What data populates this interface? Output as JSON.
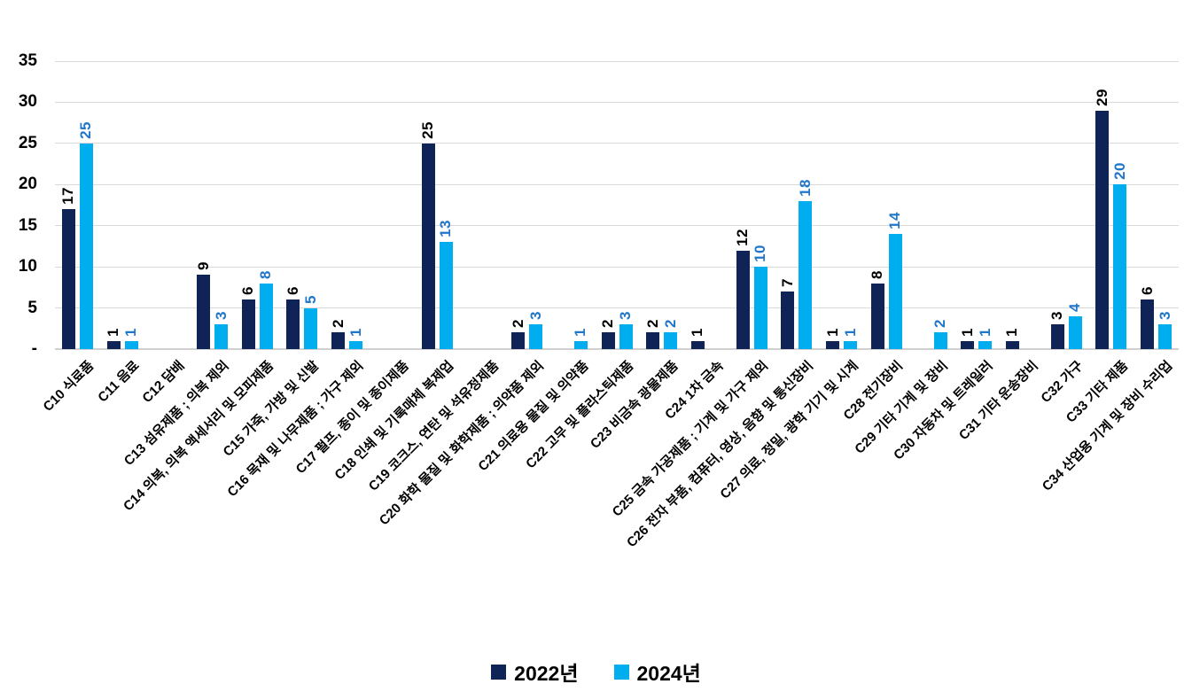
{
  "chart_data": {
    "type": "bar",
    "title": "",
    "xlabel": "",
    "ylabel": "",
    "ylim": [
      0,
      35
    ],
    "ytick_interval": 5,
    "yticks": [
      "-",
      "5",
      "10",
      "15",
      "20",
      "25",
      "30",
      "35"
    ],
    "grid": true,
    "legend_position": "bottom",
    "value_labels": "vertical",
    "gridline_color": "#dadada",
    "categories": [
      "C10 식료품",
      "C11 음료",
      "C12 담배",
      "C13 섬유제품 ; 의복 제외",
      "C14 의복, 의복 액세서리 및 모피제품",
      "C15 가죽, 가방 및 신발",
      "C16 목재 및 나무제품 ; 가구 제외",
      "C17 펄프, 종이 및 종이제품",
      "C18 인쇄 및 기록매체 복제업",
      "C19 코크스, 연탄 및 석유정제품",
      "C20 화학 물질 및 화학제품 ; 의약품 제외",
      "C21 의료용 물질 및 의약품",
      "C22 고무 및 플라스틱제품",
      "C23 비금속 광물제품",
      "C24 1차 금속",
      "C25 금속 가공제품 ; 기계 및 가구 제외",
      "C26 전자 부품, 컴퓨터, 영상, 음향 및 통신장비",
      "C27 의료, 정밀, 광학 기기 및 시계",
      "C28 전기장비",
      "C29 기타 기계 및 장비",
      "C30 자동차 및 트레일러",
      "C31 기타 운송장비",
      "C32 가구",
      "C33 기타 제품",
      "C34 산업용 기계 및 장비 수리업"
    ],
    "series": [
      {
        "name": "2022년",
        "color": "#0f2357",
        "label_color": "#000000",
        "values": [
          17,
          1,
          0,
          9,
          6,
          6,
          2,
          0,
          25,
          0,
          2,
          0,
          2,
          2,
          1,
          12,
          7,
          1,
          8,
          0,
          1,
          1,
          3,
          29,
          6
        ]
      },
      {
        "name": "2024년",
        "color": "#00aeef",
        "label_color": "#2076c8",
        "values": [
          25,
          1,
          0,
          3,
          8,
          5,
          1,
          0,
          13,
          0,
          3,
          1,
          3,
          2,
          0,
          10,
          18,
          1,
          14,
          2,
          1,
          0,
          4,
          20,
          3
        ]
      }
    ]
  }
}
